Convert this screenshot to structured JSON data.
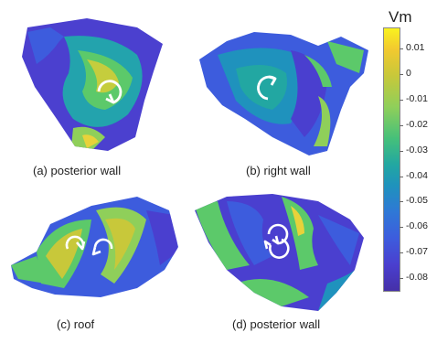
{
  "colorbar": {
    "title": "Vm",
    "ticks": [
      "0.01",
      "0",
      "-0.01",
      "-0.02",
      "-0.03",
      "-0.04",
      "-0.05",
      "-0.06",
      "-0.07",
      "-0.08"
    ],
    "range": [
      -0.085,
      0.018
    ],
    "colormap": [
      "#4530a8",
      "#3d5cdd",
      "#1f92bd",
      "#22a7a2",
      "#45c07a",
      "#8fcf5a",
      "#c8c83a",
      "#f2c92f",
      "#f9f21f"
    ]
  },
  "panels": [
    {
      "caption": "(a) posterior wall",
      "arrows": "single clockwise rotor"
    },
    {
      "caption": "(b) right wall",
      "arrows": "single clockwise rotor"
    },
    {
      "caption": "(c) roof",
      "arrows": "paired rotors"
    },
    {
      "caption": "(d) posterior wall",
      "arrows": "paired rotors"
    }
  ],
  "colors": {
    "purple": "#4a3fcf",
    "blue": "#3d5cdd",
    "cyan": "#1fa0c0",
    "green": "#5cc96a",
    "yellow": "#e8d23a",
    "arrow": "#ffffff"
  }
}
